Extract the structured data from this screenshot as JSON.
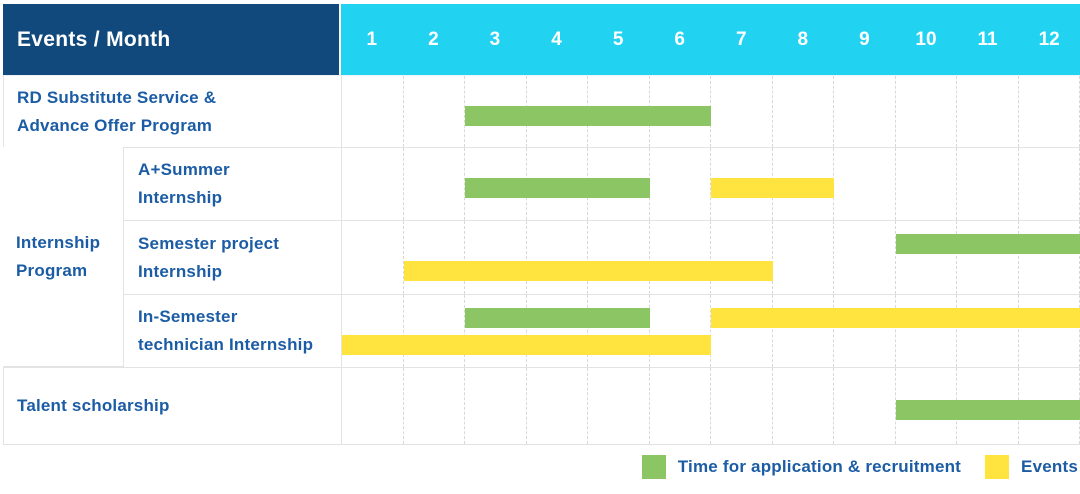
{
  "header": {
    "title": "Events / Month",
    "months": [
      "1",
      "2",
      "3",
      "4",
      "5",
      "6",
      "7",
      "8",
      "9",
      "10",
      "11",
      "12"
    ]
  },
  "group": {
    "label": "Internship Program",
    "label_lines": [
      "Internship",
      "Program"
    ]
  },
  "rows": [
    {
      "label": "RD Substitute Service & Advance Offer Program",
      "label_lines": [
        "RD Substitute Service &",
        "Advance Offer Program"
      ],
      "grouped": false,
      "bars": [
        {
          "type": "application",
          "start": 3,
          "end": 6,
          "line": "center"
        }
      ]
    },
    {
      "label": "A+Summer Internship",
      "label_lines": [
        "A+Summer",
        "Internship"
      ],
      "grouped": true,
      "bars": [
        {
          "type": "application",
          "start": 3,
          "end": 5,
          "line": "center"
        },
        {
          "type": "event",
          "start": 7,
          "end": 8,
          "line": "center"
        }
      ]
    },
    {
      "label": "Semester project Internship",
      "label_lines": [
        "Semester project",
        "Internship"
      ],
      "grouped": true,
      "bars": [
        {
          "type": "application",
          "start": 10,
          "end": 12,
          "line": "upper"
        },
        {
          "type": "event",
          "start": 2,
          "end": 7,
          "line": "lower"
        }
      ]
    },
    {
      "label": "In-Semester technician Internship",
      "label_lines": [
        "In-Semester",
        "technician Internship"
      ],
      "grouped": true,
      "bars": [
        {
          "type": "application",
          "start": 3,
          "end": 5,
          "line": "upper"
        },
        {
          "type": "event",
          "start": 7,
          "end": 12,
          "line": "upper"
        },
        {
          "type": "event",
          "start": 1,
          "end": 6,
          "line": "lower"
        }
      ]
    },
    {
      "label": "Talent scholarship",
      "label_lines": [
        "Talent scholarship"
      ],
      "grouped": false,
      "bars": [
        {
          "type": "application",
          "start": 10,
          "end": 12,
          "line": "center"
        }
      ]
    }
  ],
  "legend": [
    {
      "key": "application",
      "label": "Time for application & recruitment",
      "color": "#8CC563"
    },
    {
      "key": "event",
      "label": "Events",
      "color": "#FFE33E"
    }
  ],
  "colors": {
    "navy": "#11497D",
    "cyan": "#21D3F1",
    "green": "#8CC563",
    "yellow": "#FFE33E",
    "text_blue": "#1B5CA5",
    "grid": "#E3E3E3",
    "grid_dashed": "#D8D8D8"
  },
  "chart_data": {
    "type": "bar",
    "variant": "gantt-schedule",
    "title": "Events / Month",
    "categories": [
      "1",
      "2",
      "3",
      "4",
      "5",
      "6",
      "7",
      "8",
      "9",
      "10",
      "11",
      "12"
    ],
    "xlabel": "Month",
    "x_range": [
      1,
      12
    ],
    "grid": true,
    "legend_position": "bottom-right",
    "legend": {
      "application": "Time for application & recruitment",
      "event": "Events"
    },
    "rows": [
      {
        "group": null,
        "label": "RD Substitute Service & Advance Offer Program",
        "spans": [
          {
            "type": "application",
            "months": [
              3,
              6
            ]
          }
        ]
      },
      {
        "group": "Internship Program",
        "label": "A+Summer Internship",
        "spans": [
          {
            "type": "application",
            "months": [
              3,
              5
            ]
          },
          {
            "type": "event",
            "months": [
              7,
              8
            ]
          }
        ]
      },
      {
        "group": "Internship Program",
        "label": "Semester project Internship",
        "spans": [
          {
            "type": "application",
            "months": [
              10,
              12
            ]
          },
          {
            "type": "event",
            "months": [
              2,
              7
            ]
          }
        ]
      },
      {
        "group": "Internship Program",
        "label": "In-Semester technician Internship",
        "spans": [
          {
            "type": "application",
            "months": [
              3,
              5
            ]
          },
          {
            "type": "event",
            "months": [
              7,
              12
            ]
          },
          {
            "type": "event",
            "months": [
              1,
              6
            ]
          }
        ]
      },
      {
        "group": null,
        "label": "Talent scholarship",
        "spans": [
          {
            "type": "application",
            "months": [
              10,
              12
            ]
          }
        ]
      }
    ]
  }
}
